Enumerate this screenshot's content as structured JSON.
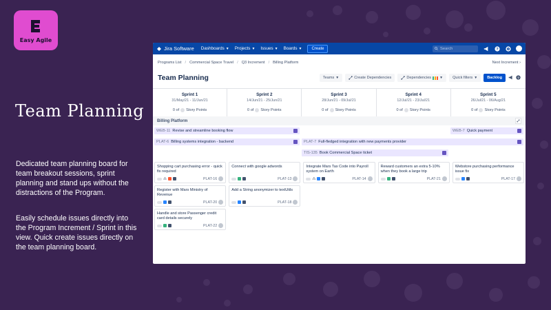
{
  "logo": {
    "text": "Easy Agile"
  },
  "hero": {
    "title": "Team Planning",
    "desc1": "Dedicated team planning board for team breakout sessions, sprint planning and stand ups without the distractions of the Program.",
    "desc2": "Easily schedule issues directly into the Program Increment / Sprint in this view. Quick create issues directly on the team planning board."
  },
  "topnav": {
    "brand": "Jira Software",
    "items": [
      "Dashboards",
      "Projects",
      "Issues",
      "Boards"
    ],
    "create": "Create",
    "search_placeholder": "Search"
  },
  "breadcrumbs": [
    "Programs List",
    "Commercial Space Travel",
    "Q3 Increment",
    "Billing Platform"
  ],
  "next_increment": "Next Increment ›",
  "page_title": "Team Planning",
  "tools": {
    "teams": "Teams",
    "create_dependencies": "Create Dependencies",
    "dependencies": "Dependencies",
    "quick_filters": "Quick filters",
    "backlog": "Backlog"
  },
  "sprints": [
    {
      "name": "Sprint 1",
      "dates": "31/May/21 - 11/Jun/21",
      "points": "0 of",
      "points_label": "Story Points"
    },
    {
      "name": "Sprint 2",
      "dates": "14/Jun/21 - 25/Jun/21",
      "points": "0 of",
      "points_label": "Story Points"
    },
    {
      "name": "Sprint 3",
      "dates": "28/Jun/21 - 09/Jul/21",
      "points": "0 of",
      "points_label": "Story Points"
    },
    {
      "name": "Sprint 4",
      "dates": "12/Jul/21 - 23/Jul/21",
      "points": "0 of",
      "points_label": "Story Points"
    },
    {
      "name": "Sprint 5",
      "dates": "26/Jul/21 - 06/Aug/21",
      "points": "0 of",
      "points_label": "Story Points"
    }
  ],
  "team": "Billing Platform",
  "features": [
    {
      "key": "WEB-11",
      "title": "Revise and streamline booking flow"
    },
    {
      "key": "WEB-7",
      "title": "Quick payment"
    },
    {
      "key": "PLAT-6",
      "title": "Billing systems integration - backend"
    },
    {
      "key": "PLAT-7",
      "title": "Full-fledged integration with new payments provider"
    },
    {
      "key": "TIS-135",
      "title": "Book Commercial Space ticket"
    }
  ],
  "cards": [
    {
      "title": "Shopping cart purchasing error - quick fix required",
      "key": "PLAT-16"
    },
    {
      "title": "Register with Mars Ministry of Revenue",
      "key": "PLAT-20"
    },
    {
      "title": "Handle and store Passenger credit card details securely",
      "key": "PLAT-22"
    },
    {
      "title": "Connect with google adwords",
      "key": "PLAT-13"
    },
    {
      "title": "Add a String anonymizer to textUtils",
      "key": "PLAT-18"
    },
    {
      "title": "Integrate Mars Tax Code into Payroll system on Earth",
      "key": "PLAT-14"
    },
    {
      "title": "Reward customers an extra 5-10% when they book a large trip",
      "key": "PLAT-21"
    },
    {
      "title": "Webstore purchasing performance issue fix",
      "key": "PLAT-17"
    }
  ],
  "colors": {
    "background": "#3a2352",
    "logo_tile": "#e04cd0",
    "nav": "#0747a6",
    "primary": "#0052cc",
    "feature_bar": "#eae6ff",
    "epic": "#6554c0"
  }
}
